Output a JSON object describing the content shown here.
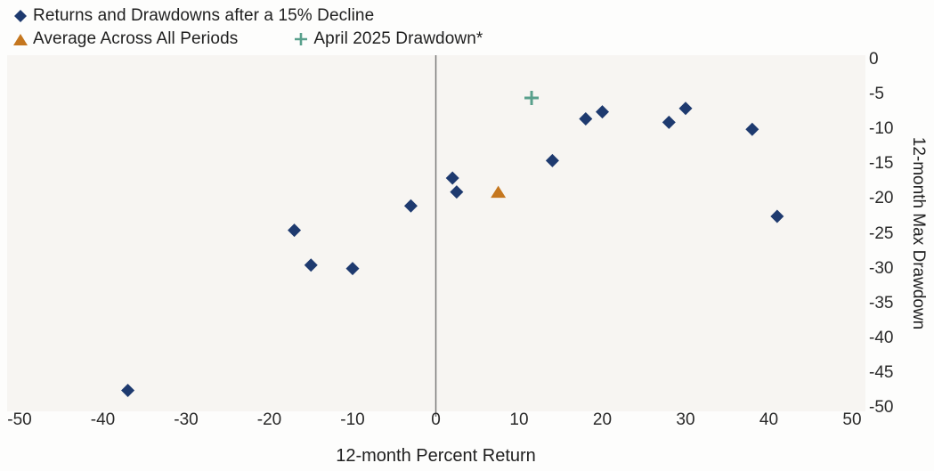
{
  "chart_data": {
    "type": "scatter",
    "xlabel": "12-month Percent Return",
    "ylabel": "12-month Max Drawdown",
    "xlim": [
      -50,
      50
    ],
    "ylim": [
      -50,
      0
    ],
    "xticks": [
      -50,
      -40,
      -30,
      -20,
      -10,
      0,
      10,
      20,
      30,
      40,
      50
    ],
    "yticks": [
      0,
      -5,
      -10,
      -15,
      -20,
      -25,
      -30,
      -35,
      -40,
      -45,
      -50
    ],
    "grid": false,
    "legend_position": "top-left",
    "zero_line_x": 0,
    "series": [
      {
        "name": "Returns and Drawdowns after a 15% Decline",
        "marker": "diamond",
        "color": "#1e3a6f",
        "points": [
          [
            -37,
            -47.5
          ],
          [
            -17,
            -24.5
          ],
          [
            -15,
            -29.5
          ],
          [
            -10,
            -30
          ],
          [
            -3,
            -21
          ],
          [
            2,
            -17
          ],
          [
            2.5,
            -19
          ],
          [
            14,
            -14.5
          ],
          [
            18,
            -8.5
          ],
          [
            20,
            -7.5
          ],
          [
            28,
            -9
          ],
          [
            30,
            -7
          ],
          [
            38,
            -10
          ],
          [
            41,
            -22.5
          ]
        ]
      },
      {
        "name": "Average Across All Periods",
        "marker": "triangle",
        "color": "#c5771f",
        "points": [
          [
            7.5,
            -19
          ]
        ]
      },
      {
        "name": "April 2025 Drawdown*",
        "marker": "plus",
        "color": "#59a08c",
        "points": [
          [
            11.5,
            -5.5
          ]
        ]
      }
    ],
    "colors": {
      "plot_background": "#f7f5f2",
      "zero_line": "#7a7a7a",
      "text": "#1f1f1f"
    }
  }
}
